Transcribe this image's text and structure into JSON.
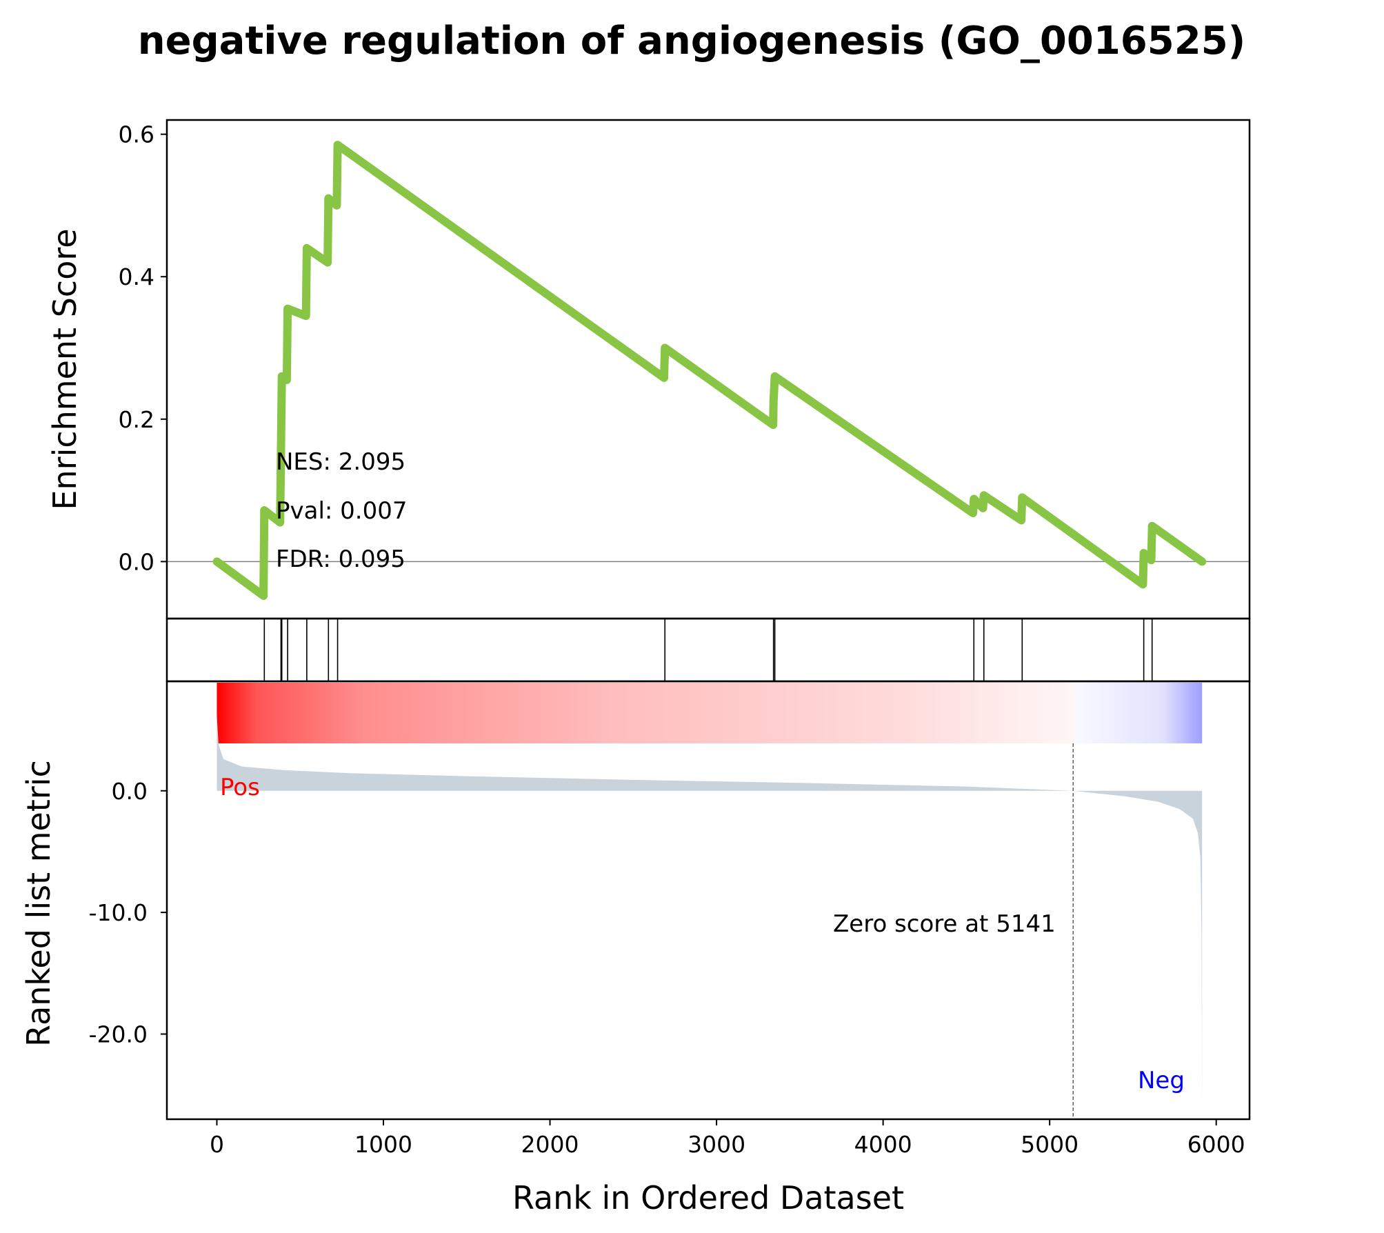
{
  "title": "negative regulation of angiogenesis (GO_0016525)",
  "colors": {
    "es_line": "#88c544",
    "pos": "#ff0000",
    "neg": "#0000ff",
    "metric_fill": "#c9d3dc",
    "zero_line": "#808080",
    "axis": "#000000"
  },
  "chart_data": {
    "type": "line",
    "x_axis": {
      "label": "Rank in Ordered Dataset",
      "range": [
        -300,
        6200
      ],
      "ticks": [
        0,
        1000,
        2000,
        3000,
        4000,
        5000,
        6000
      ],
      "tick_labels": [
        "0",
        "1000",
        "2000",
        "3000",
        "4000",
        "5000",
        "6000"
      ]
    },
    "enrichment_panel": {
      "ylabel": "Enrichment Score",
      "ylim": [
        -0.08,
        0.62
      ],
      "yticks": [
        0.0,
        0.2,
        0.4,
        0.6
      ],
      "ytick_labels": [
        "0.0",
        "0.2",
        "0.4",
        "0.6"
      ],
      "stats": {
        "nes": "NES: 2.095",
        "pval": "Pval: 0.007",
        "fdr": "FDR: 0.095"
      },
      "es_curve": [
        [
          0,
          0.0
        ],
        [
          280,
          -0.048
        ],
        [
          285,
          0.072
        ],
        [
          380,
          0.055
        ],
        [
          385,
          0.16
        ],
        [
          390,
          0.26
        ],
        [
          420,
          0.255
        ],
        [
          425,
          0.355
        ],
        [
          535,
          0.345
        ],
        [
          540,
          0.44
        ],
        [
          665,
          0.42
        ],
        [
          670,
          0.51
        ],
        [
          720,
          0.5
        ],
        [
          725,
          0.585
        ],
        [
          2685,
          0.258
        ],
        [
          2690,
          0.3
        ],
        [
          3340,
          0.192
        ],
        [
          3342,
          0.225
        ],
        [
          3350,
          0.26
        ],
        [
          4540,
          0.068
        ],
        [
          4545,
          0.088
        ],
        [
          4600,
          0.075
        ],
        [
          4605,
          0.093
        ],
        [
          4830,
          0.058
        ],
        [
          4835,
          0.09
        ],
        [
          5560,
          -0.032
        ],
        [
          5565,
          0.012
        ],
        [
          5610,
          0.002
        ],
        [
          5615,
          0.05
        ],
        [
          5915,
          0.0
        ]
      ]
    },
    "hit_positions": [
      285,
      385,
      390,
      425,
      540,
      670,
      725,
      2690,
      3342,
      3350,
      4545,
      4605,
      4835,
      5565,
      5615
    ],
    "ranked_metric_panel": {
      "ylabel": "Ranked list metric",
      "ylim": [
        -27,
        9
      ],
      "yticks": [
        0,
        -10,
        -20
      ],
      "ytick_labels": [
        "0.0",
        "-10.0",
        "-20.0"
      ],
      "pos_label": "Pos",
      "neg_label": "Neg",
      "zero_cross": 5141,
      "zero_cross_label": "Zero score at 5141",
      "n_genes": 5915,
      "metric_curve": [
        [
          0,
          6.2
        ],
        [
          10,
          3.8
        ],
        [
          40,
          2.6
        ],
        [
          150,
          2.0
        ],
        [
          400,
          1.7
        ],
        [
          800,
          1.45
        ],
        [
          1500,
          1.2
        ],
        [
          2500,
          0.9
        ],
        [
          3500,
          0.65
        ],
        [
          4500,
          0.35
        ],
        [
          5141,
          0.0
        ],
        [
          5450,
          -0.45
        ],
        [
          5650,
          -0.9
        ],
        [
          5780,
          -1.5
        ],
        [
          5860,
          -2.3
        ],
        [
          5890,
          -3.5
        ],
        [
          5905,
          -5.5
        ],
        [
          5912,
          -12
        ],
        [
          5915,
          -26
        ]
      ]
    }
  }
}
